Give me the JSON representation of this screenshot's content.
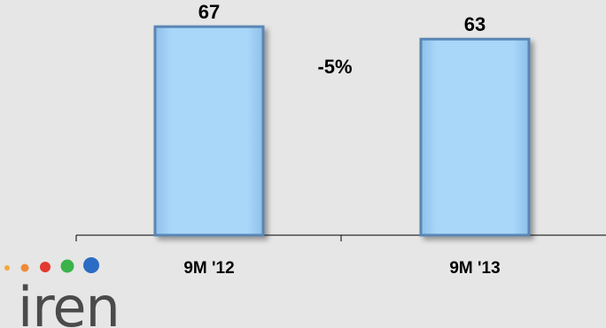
{
  "chart_data": {
    "type": "bar",
    "categories": [
      "9M '12",
      "9M '13"
    ],
    "values": [
      67,
      63
    ],
    "value_labels": [
      "67",
      "63"
    ],
    "ylim": [
      0,
      75
    ],
    "grid": false,
    "annotation": "-5%",
    "bar_color": "#9fd0f5",
    "bar_border": "#5a86b4"
  },
  "logo": {
    "text": "iren",
    "dots": [
      "#f2a93b",
      "#ef8a36",
      "#e23a2e",
      "#3bb34a",
      "#2b6cc4"
    ]
  }
}
